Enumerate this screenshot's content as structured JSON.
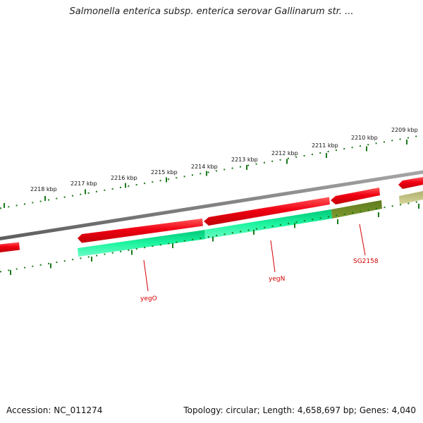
{
  "title": "Salmonella enterica subsp. enterica serovar Gallinarum str. ...",
  "accession_text": "Accession: NC_011274",
  "stats_text": "Topology: circular; Length: 4,658,697 bp; Genes: 4,040",
  "ticks": [
    "2218 kbp",
    "2217 kbp",
    "2216 kbp",
    "2215 kbp",
    "2214 kbp",
    "2213 kbp",
    "2212 kbp",
    "2211 kbp",
    "2210 kbp",
    "2209 kbp"
  ],
  "gene_labels": [
    "yegO",
    "yegN",
    "SG2158"
  ],
  "colors": {
    "backbone": "#808080",
    "forward_gene": "#e8000e",
    "gene_green": "#00e58a",
    "gene_olive": "#6f8a23",
    "gene_olive_faded": "#c2c27c",
    "ticks": "#1a7a1a",
    "gene_label": "#d40000"
  }
}
